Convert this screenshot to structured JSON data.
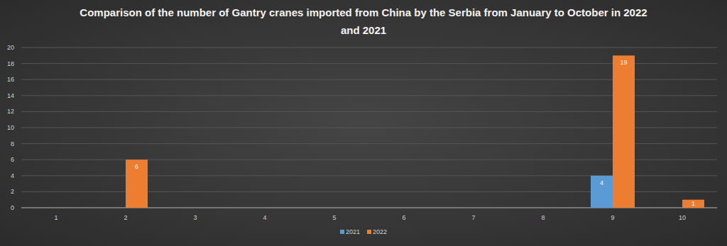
{
  "chart_data": {
    "type": "bar",
    "title": "Comparison of the number of Gantry cranes imported from China by the Serbia from January to October in 2022 and 2021",
    "categories": [
      "1",
      "2",
      "3",
      "4",
      "5",
      "6",
      "7",
      "8",
      "9",
      "10"
    ],
    "series": [
      {
        "name": "2021",
        "color": "#5b9bd5",
        "values": [
          null,
          null,
          null,
          null,
          null,
          null,
          null,
          null,
          4,
          null
        ]
      },
      {
        "name": "2022",
        "color": "#ed7d31",
        "values": [
          null,
          6,
          null,
          null,
          null,
          null,
          null,
          null,
          19,
          1
        ]
      }
    ],
    "ylim": [
      0,
      20
    ],
    "yticks": [
      0,
      2,
      4,
      6,
      8,
      10,
      12,
      14,
      16,
      18,
      20
    ],
    "grid": true,
    "data_labels": true,
    "legend": "bottom"
  }
}
